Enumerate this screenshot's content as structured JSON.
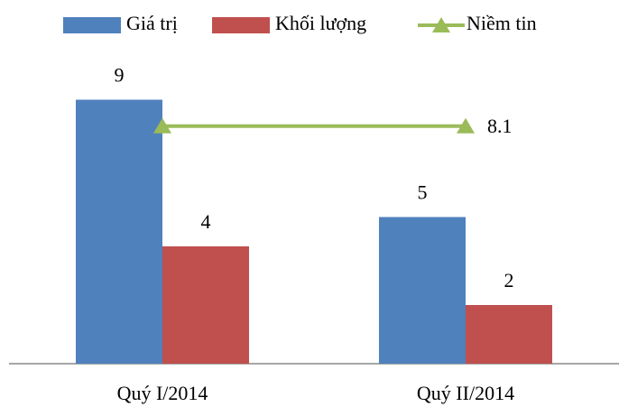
{
  "chart_data": {
    "type": "bar",
    "categories": [
      "Quý I/2014",
      "Quý II/2014"
    ],
    "series": [
      {
        "name": "Giá trị",
        "color": "#4f81bd",
        "type": "bar",
        "values": [
          9,
          5
        ]
      },
      {
        "name": "Khối lượng",
        "color": "#c0504d",
        "type": "bar",
        "values": [
          4,
          2
        ]
      },
      {
        "name": "Niềm tin",
        "color": "#9bbb59",
        "type": "line",
        "values": [
          8.1,
          8.1
        ],
        "labeled": [
          false,
          true
        ]
      }
    ],
    "ylim": [
      0,
      10
    ],
    "grid": false,
    "legend": "top"
  }
}
